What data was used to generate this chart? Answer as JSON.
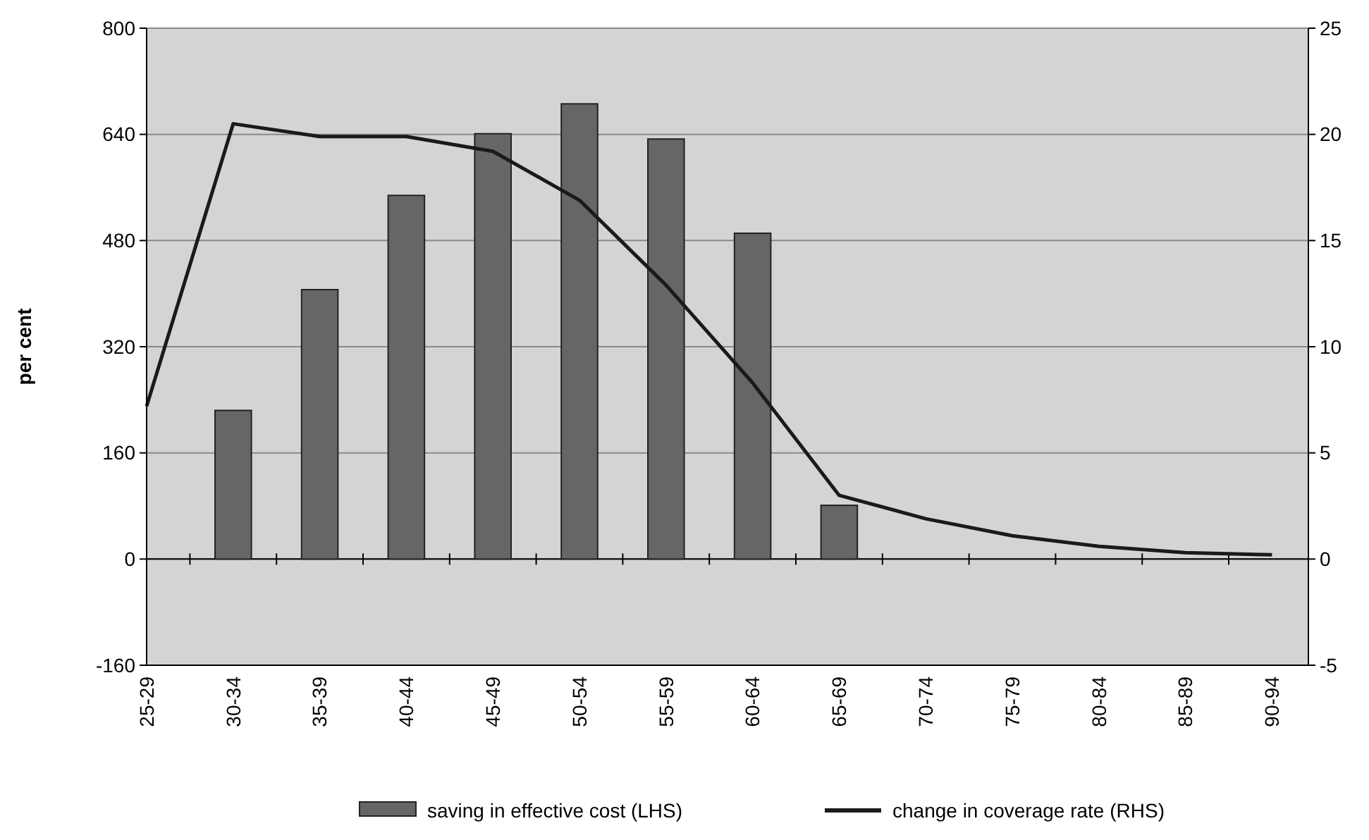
{
  "chart_data": {
    "type": "bar",
    "ylabel": "per cent",
    "categories": [
      "25-29",
      "30-34",
      "35-39",
      "40-44",
      "45-49",
      "50-54",
      "55-59",
      "60-64",
      "65-69",
      "70-74",
      "75-79",
      "80-84",
      "85-89",
      "90-94"
    ],
    "series": [
      {
        "name": "saving in effective cost (LHS)",
        "color": "#666666",
        "values": [
          null,
          224,
          406,
          548,
          641,
          686,
          633,
          491,
          81,
          null,
          null,
          null,
          null,
          null
        ]
      },
      {
        "name": "change in coverage rate (RHS)",
        "type": "line",
        "axis": "y2",
        "color": "#1a1a1a",
        "values": [
          7.2,
          20.5,
          19.9,
          19.9,
          19.2,
          16.9,
          12.9,
          8.3,
          3.0,
          1.9,
          1.1,
          0.6,
          0.3,
          0.2
        ]
      }
    ],
    "ylim": [
      -160,
      800
    ],
    "yticks": [
      {
        "value": -160,
        "label": "-160"
      },
      0,
      160,
      320,
      480,
      640,
      800
    ],
    "y2lim": [
      -5,
      25
    ],
    "y2ticks": [
      -5,
      0,
      5,
      10,
      15,
      20,
      25
    ],
    "grid": "y",
    "legend": "bottom"
  }
}
